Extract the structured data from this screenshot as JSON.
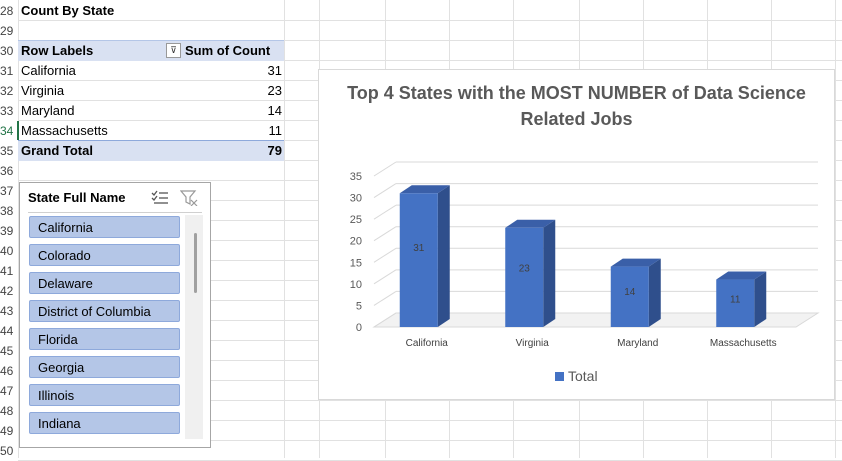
{
  "sheet": {
    "row_numbers": [
      "28",
      "29",
      "30",
      "31",
      "32",
      "33",
      "34",
      "35",
      "36",
      "37",
      "38",
      "39",
      "40",
      "41",
      "42",
      "43",
      "44",
      "45",
      "46",
      "47",
      "48",
      "49",
      "50"
    ],
    "selected_row": "34"
  },
  "pivot": {
    "title": "Count By State",
    "header_row_labels": "Row Labels",
    "header_sum": "Sum of Count",
    "rows": [
      {
        "label": "California",
        "value": "31"
      },
      {
        "label": "Virginia",
        "value": "23"
      },
      {
        "label": "Maryland",
        "value": "14"
      },
      {
        "label": "Massachusetts",
        "value": "11"
      }
    ],
    "grand_total_label": "Grand Total",
    "grand_total_value": "79",
    "filter_icon": "filter-dropdown-icon"
  },
  "slicer": {
    "title": "State Full Name",
    "icons": [
      "multi-select-icon",
      "clear-filter-icon"
    ],
    "items": [
      "California",
      "Colorado",
      "Delaware",
      "District of Columbia",
      "Florida",
      "Georgia",
      "Illinois",
      "Indiana"
    ]
  },
  "chart_data": {
    "type": "bar",
    "title": "Top 4 States with the MOST NUMBER of Data Science Related Jobs",
    "categories": [
      "California",
      "Virginia",
      "Maryland",
      "Massachusetts"
    ],
    "series": [
      {
        "name": "Total",
        "values": [
          31,
          23,
          14,
          11
        ]
      }
    ],
    "ylim": [
      0,
      35
    ],
    "yticks": [
      "0",
      "5",
      "10",
      "15",
      "20",
      "25",
      "30",
      "35"
    ],
    "grid": true,
    "legend": "bottom",
    "bar_color": "#4472c4"
  }
}
